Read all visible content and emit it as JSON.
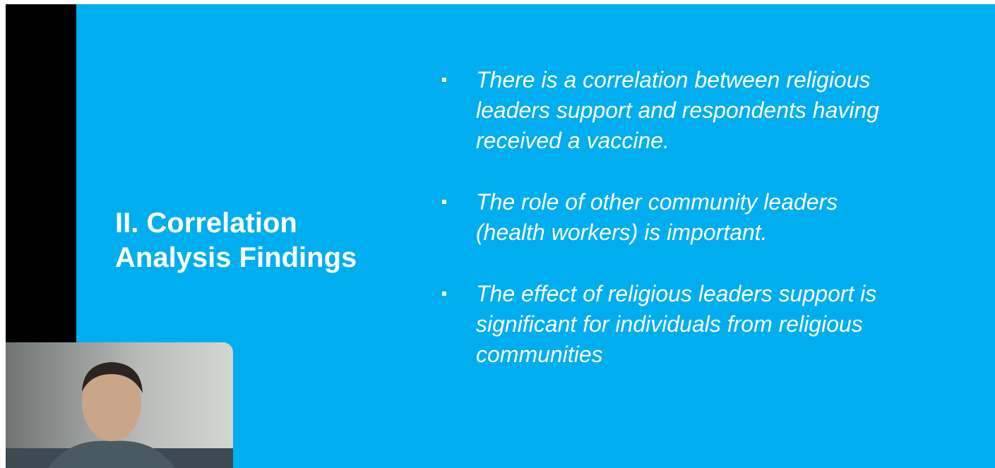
{
  "slide": {
    "title_lines": [
      "II. Correlation",
      "Analysis Findings"
    ],
    "bullets": [
      [
        "There is a correlation between religious",
        "leaders support and respondents having",
        "received a vaccine."
      ],
      [
        "The role of other community leaders",
        "(health workers) is important."
      ],
      [
        "The effect of religious leaders support is",
        "significant for individuals from religious",
        "communities"
      ]
    ]
  }
}
